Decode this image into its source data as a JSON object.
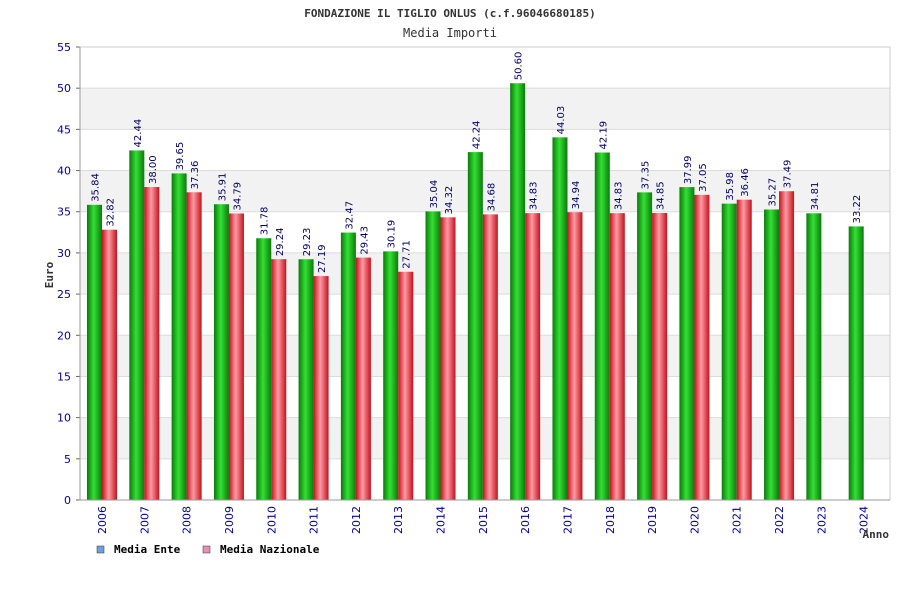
{
  "chart_data": {
    "type": "bar",
    "title": "FONDAZIONE IL TIGLIO ONLUS (c.f.96046680185)",
    "subtitle": "Media Importi",
    "xlabel": "Anno",
    "ylabel": "Euro",
    "ylim": [
      0,
      55
    ],
    "yticks": [
      "0",
      "5",
      "10",
      "15",
      "20",
      "25",
      "30",
      "35",
      "40",
      "45",
      "50",
      "55"
    ],
    "categories": [
      "2006",
      "2007",
      "2008",
      "2009",
      "2010",
      "2011",
      "2012",
      "2013",
      "2014",
      "2015",
      "2016",
      "2017",
      "2018",
      "2019",
      "2020",
      "2021",
      "2022",
      "2023",
      "2024"
    ],
    "series": [
      {
        "name": "Media Ente",
        "color": "#1fa81f",
        "values": [
          35.84,
          42.44,
          39.65,
          35.91,
          31.78,
          29.23,
          32.47,
          30.19,
          35.04,
          42.24,
          50.6,
          44.03,
          42.19,
          37.35,
          37.99,
          35.98,
          35.27,
          34.81,
          33.22
        ],
        "labels": [
          "35.84",
          "42.44",
          "39.65",
          "35.91",
          "31.78",
          "29.23",
          "32.47",
          "30.19",
          "35.04",
          "42.24",
          "50.60",
          "44.03",
          "42.19",
          "37.35",
          "37.99",
          "35.98",
          "35.27",
          "34.81",
          "33.22"
        ]
      },
      {
        "name": "Media Nazionale",
        "color": "#e23a46",
        "values": [
          32.82,
          38.0,
          37.36,
          34.79,
          29.24,
          27.19,
          29.43,
          27.71,
          34.32,
          34.68,
          34.83,
          34.94,
          34.83,
          34.85,
          37.05,
          36.46,
          37.49,
          null,
          null
        ],
        "labels": [
          "32.82",
          "38.00",
          "37.36",
          "34.79",
          "29.24",
          "27.19",
          "29.43",
          "27.71",
          "34.32",
          "34.68",
          "34.83",
          "34.94",
          "34.83",
          "34.85",
          "37.05",
          "36.46",
          "37.49",
          null,
          null
        ]
      }
    ],
    "legend": [
      {
        "label": "Media Ente",
        "color": "#6a9fe0"
      },
      {
        "label": "Media Nazionale",
        "color": "#e88fb8"
      }
    ],
    "legend_position": "bottom-left",
    "grid": true
  }
}
